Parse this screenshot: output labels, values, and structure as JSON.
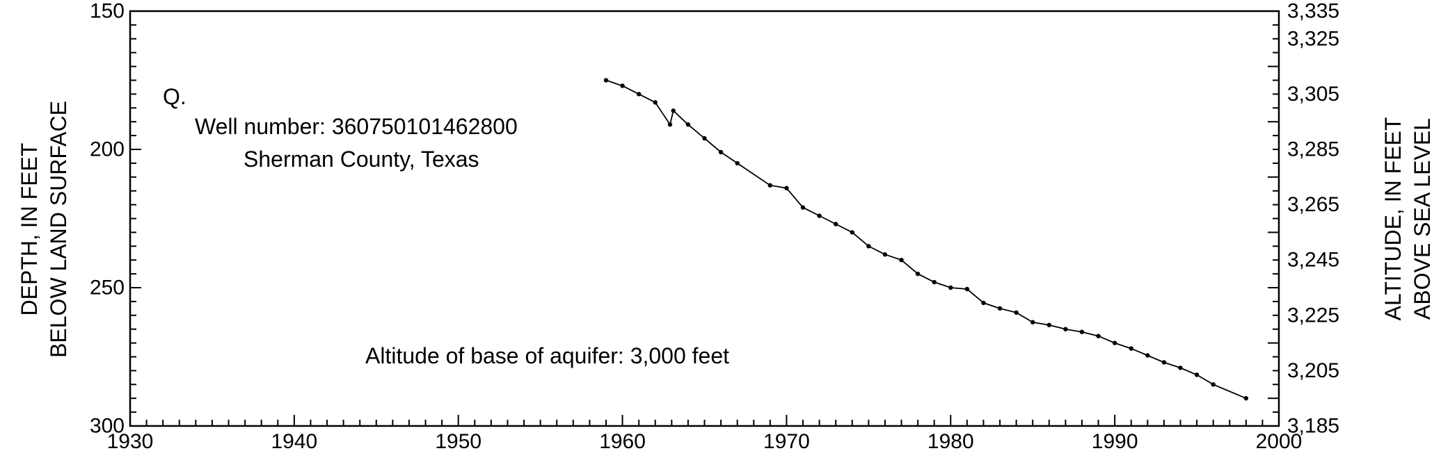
{
  "chart_data": {
    "type": "line",
    "panel_label": "Q.",
    "annotations": {
      "well_number": "Well number: 360750101462800",
      "location": "Sherman County, Texas",
      "aquifer_base": "Altitude of base of aquifer: 3,000 feet"
    },
    "ylabel_left_line1": "DEPTH, IN FEET",
    "ylabel_left_line2": "BELOW LAND SURFACE",
    "ylabel_right_line1": "ALTITUDE, IN FEET",
    "ylabel_right_line2": "ABOVE SEA LEVEL",
    "xlim": [
      1930,
      2000
    ],
    "ylim": [
      150,
      300
    ],
    "y_inverted": true,
    "grid": false,
    "x_ticks": [
      "1930",
      "1940",
      "1950",
      "1960",
      "1970",
      "1980",
      "1990",
      "2000"
    ],
    "y_left_ticks": [
      "150",
      "200",
      "250",
      "300"
    ],
    "y_right_ticks": [
      "3,335",
      "3,325",
      "3,305",
      "3,285",
      "3,265",
      "3,245",
      "3,225",
      "3,205",
      "3,185"
    ],
    "y_right_tick_depths": [
      150,
      160,
      180,
      200,
      220,
      240,
      260,
      280,
      300
    ],
    "color": "#000000",
    "series": [
      {
        "x": [
          1959,
          1960,
          1961,
          1962,
          1962.9,
          1963.1,
          1964,
          1965,
          1966,
          1967,
          1969,
          1970,
          1971,
          1972,
          1973,
          1974,
          1975,
          1976,
          1977,
          1978,
          1979,
          1980,
          1981,
          1982,
          1983,
          1984,
          1985,
          1986,
          1987,
          1988,
          1989,
          1990,
          1991,
          1992,
          1993,
          1994,
          1995,
          1996,
          1998
        ],
        "y": [
          175,
          177,
          180,
          183,
          191,
          186,
          191,
          196,
          201,
          205,
          213,
          214,
          221,
          224,
          227,
          230,
          235,
          238,
          240,
          245,
          248,
          250,
          250.5,
          255.5,
          257.5,
          259,
          262.5,
          263.5,
          265,
          266,
          267.5,
          270,
          272,
          274.5,
          277,
          279,
          281.5,
          285,
          290
        ]
      }
    ]
  }
}
